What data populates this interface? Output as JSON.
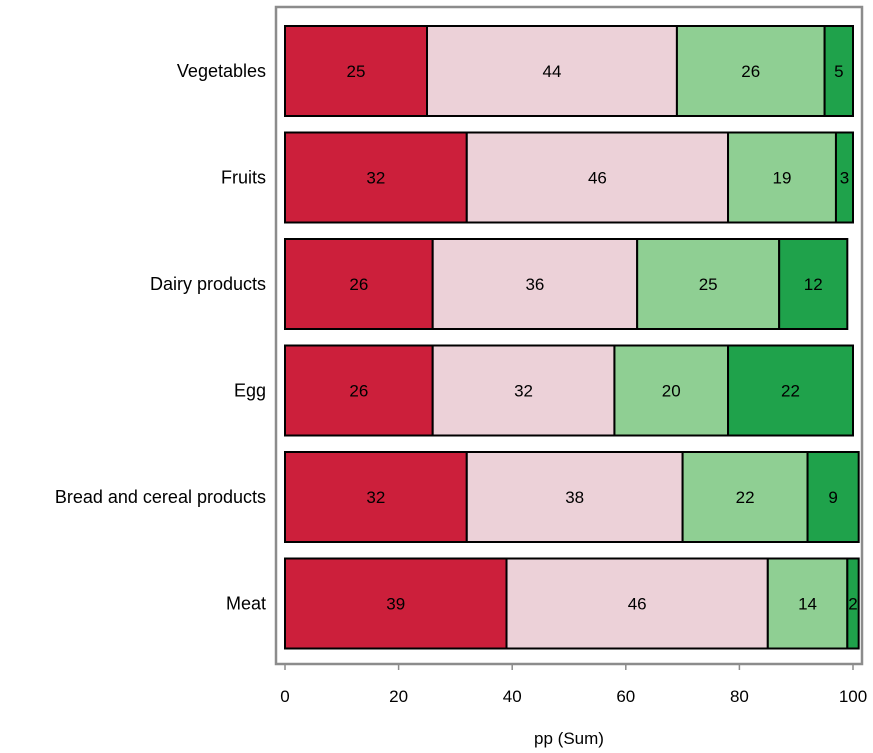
{
  "chart_data": {
    "type": "bar",
    "orientation": "horizontal",
    "stacked": true,
    "categories": [
      "Vegetables",
      "Fruits",
      "Dairy products",
      "Egg",
      "Bread and cereal products",
      "Meat"
    ],
    "series": [
      {
        "color": "#cc1f3b",
        "values": [
          25,
          32,
          26,
          26,
          32,
          39
        ]
      },
      {
        "color": "#ecd1d8",
        "values": [
          44,
          46,
          36,
          32,
          38,
          46
        ]
      },
      {
        "color": "#8fcf93",
        "values": [
          26,
          19,
          25,
          20,
          22,
          14
        ]
      },
      {
        "color": "#1fa24b",
        "values": [
          5,
          3,
          12,
          22,
          9,
          2
        ]
      }
    ],
    "xlabel": "pp (Sum)",
    "ylabel": "",
    "xlim": [
      0,
      100
    ],
    "xticks": [
      0,
      20,
      40,
      60,
      80,
      100
    ],
    "grid": false
  }
}
